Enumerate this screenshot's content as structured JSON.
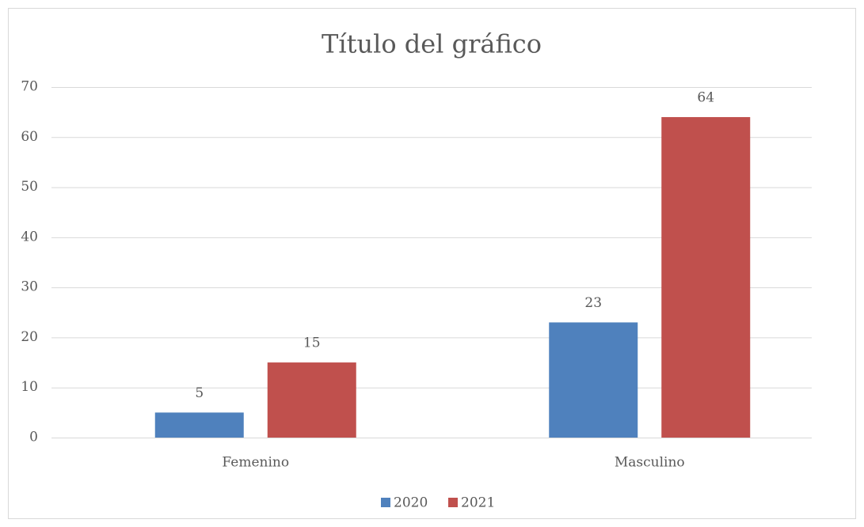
{
  "chart_data": {
    "type": "bar",
    "title": "Título del gráfico",
    "categories": [
      "Femenino",
      "Masculino"
    ],
    "series": [
      {
        "name": "2020",
        "color": "#4f81bd",
        "values": [
          5,
          23
        ]
      },
      {
        "name": "2021",
        "color": "#c0504d",
        "values": [
          15,
          64
        ]
      }
    ],
    "ylim": [
      0,
      70
    ],
    "yticks": [
      0,
      10,
      20,
      30,
      40,
      50,
      60,
      70
    ],
    "grid": true,
    "legend": "bottom"
  }
}
